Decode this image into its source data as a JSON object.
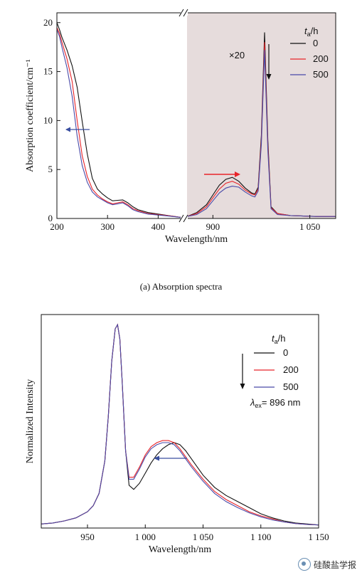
{
  "chart_data": [
    {
      "type": "line",
      "panel": "a",
      "caption": "(a) Absorption spectra",
      "xlabel": "Wavelength/nm",
      "ylabel": "Absorption coefficient/cm⁻¹",
      "ylim": [
        0,
        21
      ],
      "yticks": [
        "0",
        "5",
        "10",
        "15",
        "20"
      ],
      "segments": [
        {
          "xlim": [
            200,
            450
          ],
          "xticks": [
            "200",
            "300",
            "400"
          ]
        },
        {
          "xlim": [
            860,
            1090
          ],
          "xticks": [
            "900",
            "1 050"
          ],
          "shaded": true,
          "scale_label": "×20"
        }
      ],
      "legend": {
        "title": "t",
        "title_sub": "a",
        "title_unit": "/h",
        "position": "top-right"
      },
      "colors": {
        "0": "#111111",
        "200": "#e8242a",
        "500": "#4a4aa8",
        "shade": "#e6dcdc",
        "arrow_blue": "#3a4fa0",
        "arrow_red": "#e8242a"
      },
      "series": [
        {
          "name": "0",
          "x": [
            200,
            205,
            210,
            220,
            230,
            240,
            250,
            260,
            270,
            280,
            290,
            300,
            310,
            320,
            330,
            340,
            350,
            360,
            380,
            400,
            420,
            440,
            450
          ],
          "y": [
            20.0,
            19.3,
            18.5,
            17.2,
            15.6,
            13.4,
            9.9,
            6.6,
            4.1,
            3.0,
            2.5,
            2.1,
            1.8,
            1.85,
            1.9,
            1.6,
            1.2,
            0.9,
            0.6,
            0.45,
            0.3,
            0.15,
            0.1
          ],
          "x2": [
            860,
            875,
            890,
            900,
            910,
            920,
            930,
            940,
            950,
            960,
            965,
            970,
            975,
            980,
            985,
            990,
            1000,
            1020,
            1040,
            1060,
            1080,
            1090
          ],
          "y2": [
            0.2,
            0.6,
            1.4,
            2.4,
            3.4,
            4.0,
            4.2,
            3.8,
            3.1,
            2.6,
            2.5,
            3.2,
            8.5,
            19.0,
            8.0,
            1.2,
            0.5,
            0.3,
            0.25,
            0.2,
            0.2,
            0.2
          ]
        },
        {
          "name": "200",
          "x": [
            200,
            205,
            210,
            220,
            230,
            240,
            250,
            260,
            270,
            280,
            290,
            300,
            310,
            320,
            330,
            340,
            350,
            360,
            380,
            400,
            420,
            440,
            450
          ],
          "y": [
            19.5,
            18.9,
            18.0,
            16.3,
            14.0,
            10.0,
            6.4,
            4.3,
            3.0,
            2.4,
            2.0,
            1.7,
            1.5,
            1.6,
            1.7,
            1.4,
            1.0,
            0.8,
            0.5,
            0.4,
            0.28,
            0.15,
            0.1
          ],
          "x2": [
            860,
            875,
            890,
            900,
            910,
            920,
            930,
            940,
            950,
            960,
            965,
            970,
            975,
            980,
            985,
            990,
            1000,
            1020,
            1040,
            1060,
            1080,
            1090
          ],
          "y2": [
            0.2,
            0.5,
            1.2,
            2.1,
            3.0,
            3.6,
            3.8,
            3.5,
            2.9,
            2.5,
            2.4,
            3.0,
            8.0,
            18.0,
            7.5,
            1.1,
            0.5,
            0.3,
            0.25,
            0.2,
            0.2,
            0.2
          ]
        },
        {
          "name": "500",
          "x": [
            200,
            205,
            210,
            220,
            230,
            240,
            250,
            260,
            270,
            280,
            290,
            300,
            310,
            320,
            330,
            340,
            350,
            360,
            380,
            400,
            420,
            440,
            450
          ],
          "y": [
            19.3,
            18.6,
            17.5,
            15.4,
            12.5,
            8.4,
            5.4,
            3.7,
            2.7,
            2.2,
            1.9,
            1.6,
            1.4,
            1.5,
            1.6,
            1.3,
            0.9,
            0.7,
            0.45,
            0.35,
            0.25,
            0.14,
            0.1
          ],
          "x2": [
            860,
            875,
            890,
            900,
            910,
            920,
            930,
            940,
            950,
            960,
            965,
            970,
            975,
            980,
            985,
            990,
            1000,
            1020,
            1040,
            1060,
            1080,
            1090
          ],
          "y2": [
            0.2,
            0.4,
            1.0,
            1.8,
            2.6,
            3.1,
            3.3,
            3.2,
            2.7,
            2.3,
            2.2,
            2.8,
            7.6,
            17.2,
            7.0,
            1.0,
            0.4,
            0.3,
            0.25,
            0.2,
            0.2,
            0.2
          ]
        }
      ]
    },
    {
      "type": "line",
      "panel": "b",
      "xlabel": "Wavelength/nm",
      "ylabel": "Normalized Intensity",
      "xlim": [
        910,
        1150
      ],
      "xticks": [
        "950",
        "1 000",
        "1 050",
        "1 100",
        "1 150"
      ],
      "ylim": [
        0,
        1.05
      ],
      "legend": {
        "title": "t",
        "title_sub": "a",
        "title_unit": "/h",
        "position": "top-right",
        "note": "λ",
        "note_sub": "ex",
        "note_value": "= 896 nm"
      },
      "colors": {
        "0": "#111111",
        "200": "#e8242a",
        "500": "#4a4aa8",
        "arrow_blue": "#3a4fa0"
      },
      "series": [
        {
          "name": "0",
          "x": [
            910,
            920,
            930,
            940,
            950,
            955,
            960,
            965,
            968,
            971,
            974,
            976,
            978,
            980,
            983,
            986,
            990,
            995,
            1000,
            1005,
            1010,
            1015,
            1020,
            1025,
            1030,
            1035,
            1040,
            1050,
            1060,
            1070,
            1080,
            1090,
            1100,
            1110,
            1120,
            1130,
            1140,
            1150
          ],
          "y": [
            0.02,
            0.025,
            0.035,
            0.05,
            0.08,
            0.11,
            0.17,
            0.33,
            0.55,
            0.82,
            0.98,
            1.0,
            0.93,
            0.72,
            0.38,
            0.21,
            0.19,
            0.22,
            0.27,
            0.32,
            0.36,
            0.39,
            0.41,
            0.42,
            0.41,
            0.38,
            0.34,
            0.26,
            0.2,
            0.16,
            0.13,
            0.1,
            0.07,
            0.05,
            0.035,
            0.025,
            0.02,
            0.015
          ]
        },
        {
          "name": "200",
          "x": [
            910,
            920,
            930,
            940,
            950,
            955,
            960,
            965,
            968,
            971,
            974,
            976,
            978,
            980,
            983,
            986,
            990,
            995,
            1000,
            1005,
            1010,
            1015,
            1020,
            1025,
            1030,
            1035,
            1040,
            1050,
            1060,
            1070,
            1080,
            1090,
            1100,
            1110,
            1120,
            1130,
            1140,
            1150
          ],
          "y": [
            0.02,
            0.025,
            0.035,
            0.05,
            0.08,
            0.11,
            0.17,
            0.33,
            0.55,
            0.82,
            0.98,
            1.0,
            0.93,
            0.72,
            0.38,
            0.25,
            0.25,
            0.3,
            0.36,
            0.4,
            0.42,
            0.43,
            0.43,
            0.42,
            0.39,
            0.35,
            0.31,
            0.24,
            0.18,
            0.14,
            0.11,
            0.08,
            0.06,
            0.045,
            0.03,
            0.022,
            0.018,
            0.015
          ]
        },
        {
          "name": "500",
          "x": [
            910,
            920,
            930,
            940,
            950,
            955,
            960,
            965,
            968,
            971,
            974,
            976,
            978,
            980,
            983,
            986,
            990,
            995,
            1000,
            1005,
            1010,
            1015,
            1020,
            1025,
            1030,
            1035,
            1040,
            1050,
            1060,
            1070,
            1080,
            1090,
            1100,
            1110,
            1120,
            1130,
            1140,
            1150
          ],
          "y": [
            0.02,
            0.025,
            0.035,
            0.05,
            0.08,
            0.11,
            0.17,
            0.33,
            0.55,
            0.82,
            0.98,
            1.0,
            0.93,
            0.72,
            0.38,
            0.24,
            0.24,
            0.29,
            0.35,
            0.39,
            0.41,
            0.42,
            0.42,
            0.41,
            0.38,
            0.34,
            0.3,
            0.23,
            0.17,
            0.13,
            0.1,
            0.075,
            0.055,
            0.04,
            0.03,
            0.022,
            0.018,
            0.015
          ]
        }
      ]
    }
  ],
  "watermark": "硅酸盐学报"
}
